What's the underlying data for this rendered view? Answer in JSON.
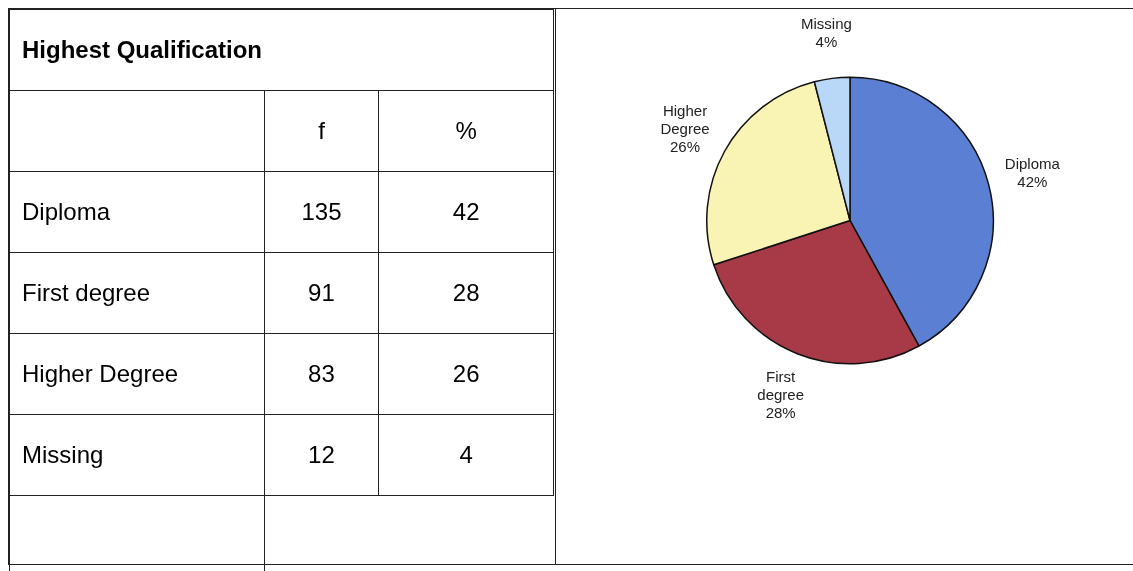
{
  "chart_data": [
    {
      "type": "other",
      "title": "Highest Qualification",
      "categories": [
        "Diploma",
        "First degree",
        "Higher Degree",
        "Missing"
      ],
      "data_labels": true,
      "series": [
        {
          "name": "f",
          "values": [
            135,
            91,
            83,
            12
          ]
        },
        {
          "name": "%",
          "values": [
            42,
            28,
            26,
            4
          ]
        }
      ]
    },
    {
      "type": "pie",
      "categories": [
        "Diploma",
        "First degree",
        "Higher Degree",
        "Missing"
      ],
      "values": [
        42,
        28,
        26,
        4
      ],
      "colors": [
        "#5b7fd3",
        "#a83a48",
        "#faf4b4",
        "#b9d7f7"
      ],
      "value_labels": [
        "42%",
        "28%",
        "26%",
        "4%"
      ],
      "legend": false
    }
  ]
}
